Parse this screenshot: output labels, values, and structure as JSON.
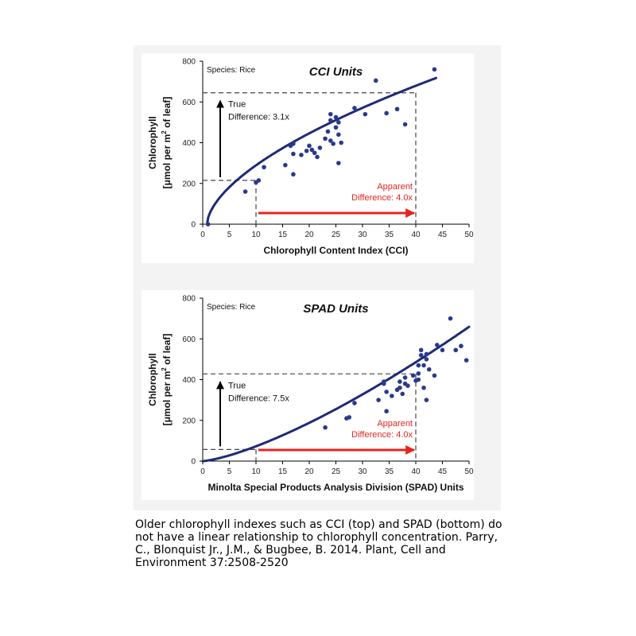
{
  "colors": {
    "curve": "#1f2a78",
    "points": "#2a3a8c",
    "arrow_red": "#e52421",
    "text_red": "#e52421",
    "axis": "#000000"
  },
  "chart_data": [
    {
      "type": "scatter",
      "title": "CCI Units",
      "species_label": "Species: Rice",
      "xlabel": "Chlorophyll Content Index (CCI)",
      "ylabel_line1": "Chlorophyll",
      "ylabel_line2_pre": "[μmol per m",
      "ylabel_line2_sup": "2",
      "ylabel_line2_post": " of leaf]",
      "xlim": [
        0,
        50
      ],
      "ylim": [
        0,
        800
      ],
      "xticks": [
        0,
        5,
        10,
        15,
        20,
        25,
        30,
        35,
        40,
        45,
        50
      ],
      "yticks": [
        0,
        200,
        400,
        600,
        800
      ],
      "points": [
        [
          1,
          0
        ],
        [
          8,
          160
        ],
        [
          10,
          205
        ],
        [
          10.5,
          215
        ],
        [
          11.5,
          280
        ],
        [
          15.5,
          290
        ],
        [
          16.5,
          385
        ],
        [
          17,
          395
        ],
        [
          17,
          345
        ],
        [
          17,
          245
        ],
        [
          18.5,
          340
        ],
        [
          19.5,
          360
        ],
        [
          20,
          385
        ],
        [
          20.5,
          365
        ],
        [
          21,
          350
        ],
        [
          21.5,
          330
        ],
        [
          22,
          375
        ],
        [
          23,
          420
        ],
        [
          23.5,
          455
        ],
        [
          24,
          540
        ],
        [
          24,
          510
        ],
        [
          24,
          410
        ],
        [
          24.5,
          395
        ],
        [
          25,
          525
        ],
        [
          25,
          475
        ],
        [
          25.5,
          500
        ],
        [
          25.5,
          440
        ],
        [
          25.5,
          300
        ],
        [
          26,
          400
        ],
        [
          28.5,
          570
        ],
        [
          30.5,
          540
        ],
        [
          32.5,
          705
        ],
        [
          34.5,
          545
        ],
        [
          36.5,
          565
        ],
        [
          38,
          490
        ],
        [
          43.5,
          760
        ]
      ],
      "fit": {
        "form": "power",
        "x0": 0.8,
        "a": 78,
        "b": 0.59
      },
      "guides": {
        "x_low": 10,
        "x_high": 40,
        "y_low": 215,
        "y_high": 645,
        "true_label_1": "True",
        "true_label_2": "Difference: 3.1x",
        "apparent_label_1": "Apparent",
        "apparent_label_2": "Difference: 4.0x"
      }
    },
    {
      "type": "scatter",
      "title": "SPAD Units",
      "species_label": "Species: Rice",
      "xlabel": "Minolta Special Products Analysis Division (SPAD) Units",
      "ylabel_line1": "Chlorophyll",
      "ylabel_line2_pre": "[μmol per m",
      "ylabel_line2_sup": "2",
      "ylabel_line2_post": " of leaf]",
      "xlim": [
        0,
        50
      ],
      "ylim": [
        0,
        800
      ],
      "xticks": [
        0,
        5,
        10,
        15,
        20,
        25,
        30,
        35,
        40,
        45,
        50
      ],
      "yticks": [
        0,
        200,
        400,
        600,
        800
      ],
      "points": [
        [
          23,
          165
        ],
        [
          27,
          210
        ],
        [
          27.5,
          215
        ],
        [
          28.5,
          285
        ],
        [
          33,
          300
        ],
        [
          34,
          390
        ],
        [
          34,
          380
        ],
        [
          34.5,
          340
        ],
        [
          34.5,
          245
        ],
        [
          35.5,
          320
        ],
        [
          36.5,
          350
        ],
        [
          37,
          390
        ],
        [
          37,
          360
        ],
        [
          37.5,
          330
        ],
        [
          38,
          410
        ],
        [
          38,
          380
        ],
        [
          38.5,
          370
        ],
        [
          39.5,
          420
        ],
        [
          40,
          395
        ],
        [
          40.5,
          470
        ],
        [
          40.5,
          430
        ],
        [
          40.5,
          400
        ],
        [
          41,
          545
        ],
        [
          41,
          520
        ],
        [
          41.5,
          470
        ],
        [
          41.5,
          360
        ],
        [
          42,
          525
        ],
        [
          42,
          500
        ],
        [
          42,
          300
        ],
        [
          42.5,
          450
        ],
        [
          43.5,
          420
        ],
        [
          44,
          570
        ],
        [
          45,
          545
        ],
        [
          46.5,
          700
        ],
        [
          47.5,
          545
        ],
        [
          48.5,
          565
        ],
        [
          49.5,
          495
        ]
      ],
      "fit": {
        "form": "power",
        "x0": 0,
        "a": 3.1,
        "b": 1.37
      },
      "guides": {
        "x_low": 10,
        "x_high": 40,
        "y_low": 57,
        "y_high": 428,
        "true_label_1": "True",
        "true_label_2": "Difference: 7.5x",
        "apparent_label_1": "Apparent",
        "apparent_label_2": "Difference: 4.0x"
      }
    }
  ],
  "caption": "Older chlorophyll indexes such as CCI (top) and SPAD (bottom) do not have a linear relationship to chlorophyll concentration. Parry, C., Blonquist Jr., J.M., & Bugbee, B. 2014. Plant, Cell and Environment 37:2508-2520"
}
